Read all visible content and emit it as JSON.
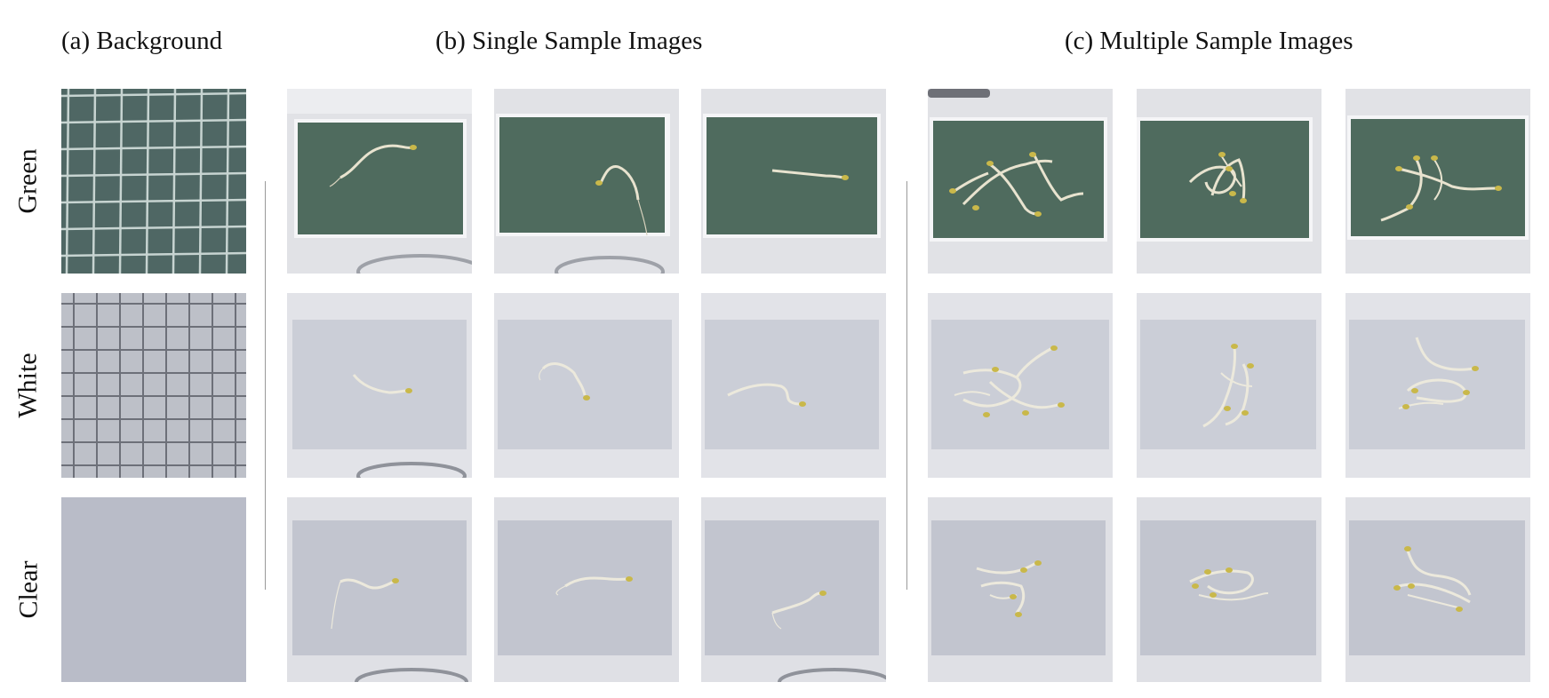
{
  "headers": {
    "background": "(a) Background",
    "single": "(b) Single Sample Images",
    "multiple": "(c) Multiple Sample Images"
  },
  "rows": {
    "green": "Green",
    "white": "White",
    "clear": "Clear"
  },
  "colors": {
    "green_mat": "#4f6b5e",
    "white_mat": "#c9cdd6",
    "clear_mat": "#b9bdc8",
    "frame": "#dfe0e4",
    "sprout": "#e8e3cf",
    "seed": "#c9b84a"
  }
}
